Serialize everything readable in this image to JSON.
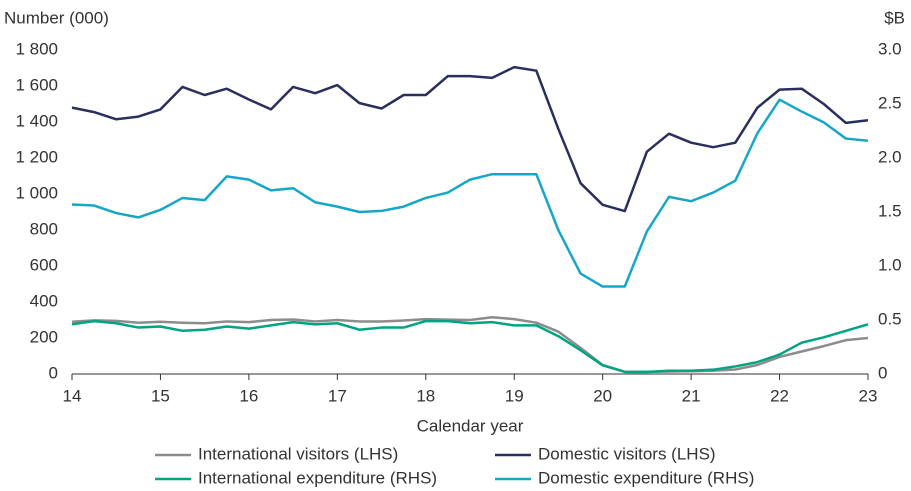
{
  "chart_data": {
    "type": "line",
    "y_label": "Number (000)",
    "y2_label": "$B",
    "x_label": "Calendar year",
    "x": [
      14,
      14.25,
      14.5,
      14.75,
      15,
      15.25,
      15.5,
      15.75,
      16,
      16.25,
      16.5,
      16.75,
      17,
      17.25,
      17.5,
      17.75,
      18,
      18.25,
      18.5,
      18.75,
      19,
      19.25,
      19.5,
      19.75,
      20,
      20.25,
      20.5,
      20.75,
      21,
      21.25,
      21.5,
      21.75,
      22,
      22.25,
      22.5,
      22.75,
      23
    ],
    "xlim": [
      14,
      23
    ],
    "xticks": [
      14,
      15,
      16,
      17,
      18,
      19,
      20,
      21,
      22,
      23
    ],
    "ylim": [
      0,
      1800
    ],
    "yticks": [
      0,
      200,
      400,
      600,
      800,
      {
        "value": 1000,
        "label": "1 000"
      },
      {
        "value": 1200,
        "label": "1 200"
      },
      {
        "value": 1400,
        "label": "1 400"
      },
      {
        "value": 1600,
        "label": "1 600"
      },
      {
        "value": 1800,
        "label": "1 800"
      }
    ],
    "y2lim": [
      0,
      3
    ],
    "y2ticks": [
      0,
      0.5,
      {
        "value": 1,
        "label": "1.0"
      },
      1.5,
      {
        "value": 2,
        "label": "2.0"
      },
      2.5,
      {
        "value": 3,
        "label": "3.0"
      }
    ],
    "series": [
      {
        "name": "International visitors (LHS)",
        "color": "#8c8c8c",
        "values": [
          290,
          298,
          295,
          285,
          290,
          285,
          282,
          292,
          288,
          300,
          303,
          292,
          300,
          292,
          292,
          297,
          305,
          302,
          300,
          315,
          305,
          285,
          235,
          145,
          50,
          12,
          12,
          14,
          15,
          18,
          25,
          50,
          95,
          125,
          155,
          188,
          200
        ]
      },
      {
        "name": "Domestic visitors (LHS)",
        "color": "#2b2f5e",
        "values": [
          1480,
          1455,
          1415,
          1430,
          1470,
          1595,
          1550,
          1585,
          1525,
          1470,
          1595,
          1560,
          1605,
          1505,
          1475,
          1550,
          1550,
          1655,
          1655,
          1645,
          1705,
          1685,
          1360,
          1060,
          940,
          905,
          1235,
          1335,
          1285,
          1260,
          1285,
          1480,
          1580,
          1585,
          1500,
          1395,
          1410
        ]
      },
      {
        "name": "International expenditure (RHS)",
        "color": "#00a383",
        "axis": "y2",
        "values": [
          0.46,
          0.49,
          0.47,
          0.43,
          0.44,
          0.4,
          0.41,
          0.44,
          0.42,
          0.45,
          0.48,
          0.46,
          0.47,
          0.41,
          0.43,
          0.43,
          0.49,
          0.49,
          0.47,
          0.48,
          0.45,
          0.45,
          0.35,
          0.22,
          0.08,
          0.02,
          0.02,
          0.03,
          0.03,
          0.04,
          0.07,
          0.11,
          0.18,
          0.29,
          0.34,
          0.4,
          0.46
        ]
      },
      {
        "name": "Domestic expenditure (RHS)",
        "color": "#16a7c8",
        "axis": "y2",
        "values": [
          1.57,
          1.56,
          1.49,
          1.45,
          1.52,
          1.63,
          1.61,
          1.83,
          1.8,
          1.7,
          1.72,
          1.59,
          1.55,
          1.5,
          1.51,
          1.55,
          1.63,
          1.68,
          1.8,
          1.85,
          1.85,
          1.85,
          1.33,
          0.93,
          0.81,
          0.81,
          1.32,
          1.64,
          1.6,
          1.68,
          1.79,
          2.23,
          2.54,
          2.43,
          2.33,
          2.18,
          2.16
        ]
      }
    ]
  }
}
